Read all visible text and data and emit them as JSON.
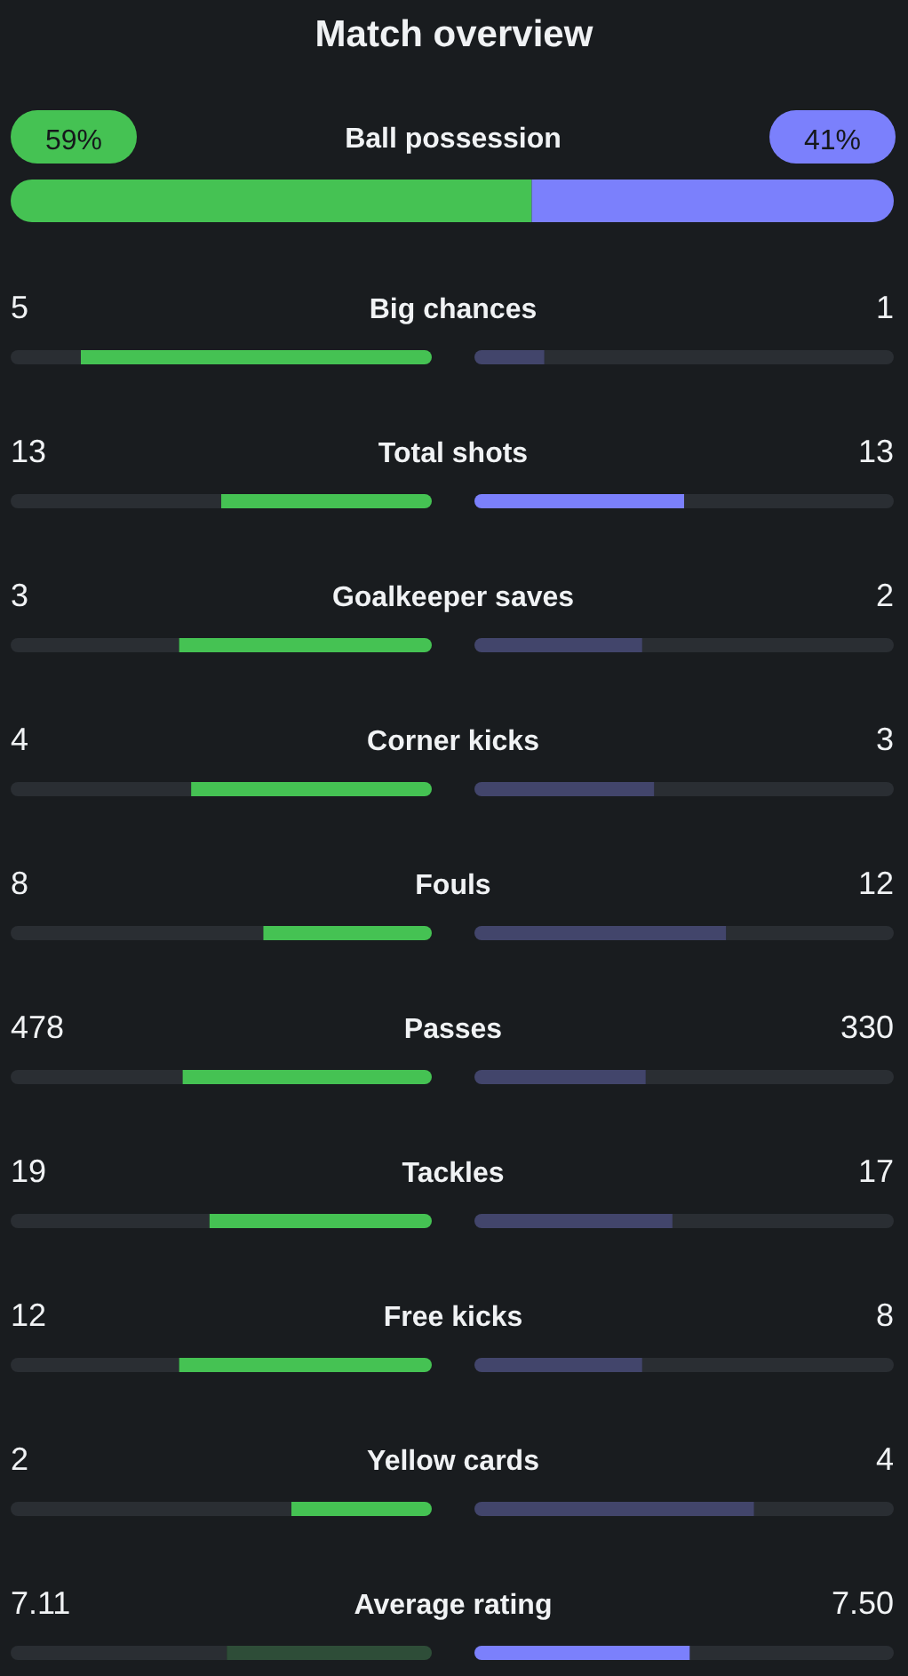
{
  "chart_data": [
    {
      "type": "other",
      "title": "Match overview",
      "categories": [
        "Ball possession"
      ],
      "series": [
        {
          "color": "#45c253",
          "values": [
            59
          ],
          "value_labels": [
            "59%"
          ]
        },
        {
          "color": "#7b80fc",
          "values": [
            41
          ],
          "value_labels": [
            "41%"
          ]
        }
      ]
    },
    {
      "type": "other",
      "categories": [
        "Big chances"
      ],
      "series": [
        {
          "color": "#45c253",
          "values": [
            5
          ],
          "value_labels": [
            "5"
          ]
        },
        {
          "color": "#42456b",
          "values": [
            1
          ],
          "value_labels": [
            "1"
          ]
        }
      ]
    },
    {
      "type": "other",
      "categories": [
        "Total shots"
      ],
      "series": [
        {
          "color": "#45c253",
          "values": [
            13
          ],
          "value_labels": [
            "13"
          ]
        },
        {
          "color": "#7b80fc",
          "values": [
            13
          ],
          "value_labels": [
            "13"
          ]
        }
      ]
    },
    {
      "type": "other",
      "categories": [
        "Goalkeeper saves"
      ],
      "series": [
        {
          "color": "#45c253",
          "values": [
            3
          ],
          "value_labels": [
            "3"
          ]
        },
        {
          "color": "#42456b",
          "values": [
            2
          ],
          "value_labels": [
            "2"
          ]
        }
      ]
    },
    {
      "type": "other",
      "categories": [
        "Corner kicks"
      ],
      "series": [
        {
          "color": "#45c253",
          "values": [
            4
          ],
          "value_labels": [
            "4"
          ]
        },
        {
          "color": "#42456b",
          "values": [
            3
          ],
          "value_labels": [
            "3"
          ]
        }
      ]
    },
    {
      "type": "other",
      "categories": [
        "Fouls"
      ],
      "series": [
        {
          "color": "#45c253",
          "values": [
            8
          ],
          "value_labels": [
            "8"
          ]
        },
        {
          "color": "#42456b",
          "values": [
            12
          ],
          "value_labels": [
            "12"
          ]
        }
      ]
    },
    {
      "type": "other",
      "categories": [
        "Passes"
      ],
      "series": [
        {
          "color": "#45c253",
          "values": [
            478
          ],
          "value_labels": [
            "478"
          ]
        },
        {
          "color": "#42456b",
          "values": [
            330
          ],
          "value_labels": [
            "330"
          ]
        }
      ]
    },
    {
      "type": "other",
      "categories": [
        "Tackles"
      ],
      "series": [
        {
          "color": "#45c253",
          "values": [
            19
          ],
          "value_labels": [
            "19"
          ]
        },
        {
          "color": "#42456b",
          "values": [
            17
          ],
          "value_labels": [
            "17"
          ]
        }
      ]
    },
    {
      "type": "other",
      "categories": [
        "Free kicks"
      ],
      "series": [
        {
          "color": "#45c253",
          "values": [
            12
          ],
          "value_labels": [
            "12"
          ]
        },
        {
          "color": "#42456b",
          "values": [
            8
          ],
          "value_labels": [
            "8"
          ]
        }
      ]
    },
    {
      "type": "other",
      "categories": [
        "Yellow cards"
      ],
      "series": [
        {
          "color": "#45c253",
          "values": [
            2
          ],
          "value_labels": [
            "2"
          ]
        },
        {
          "color": "#42456b",
          "values": [
            4
          ],
          "value_labels": [
            "4"
          ]
        }
      ]
    },
    {
      "type": "other",
      "categories": [
        "Average rating"
      ],
      "series": [
        {
          "color": "#2e4d38",
          "values": [
            7.11
          ],
          "value_labels": [
            "7.11"
          ]
        },
        {
          "color": "#7b80fc",
          "values": [
            7.5
          ],
          "value_labels": [
            "7.50"
          ]
        }
      ]
    }
  ]
}
